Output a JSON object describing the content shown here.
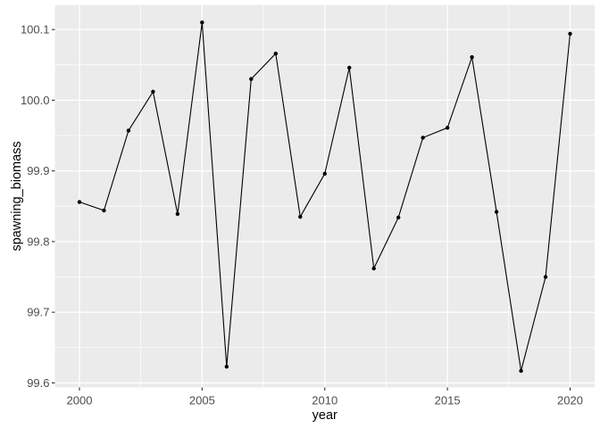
{
  "figure": {
    "background_color": "#FFFFFF"
  },
  "chart_data": {
    "type": "line",
    "title": "",
    "xlabel": "year",
    "ylabel": "spawning_biomass",
    "x": [
      2000,
      2001,
      2002,
      2003,
      2004,
      2005,
      2006,
      2007,
      2008,
      2009,
      2010,
      2011,
      2012,
      2013,
      2014,
      2015,
      2016,
      2017,
      2018,
      2019,
      2020
    ],
    "series": [
      {
        "name": "spawning_biomass",
        "values": [
          99.856,
          99.844,
          99.957,
          100.012,
          99.839,
          100.11,
          99.623,
          100.03,
          100.066,
          99.835,
          99.896,
          100.046,
          99.762,
          99.834,
          99.947,
          99.961,
          100.061,
          99.842,
          99.617,
          99.75,
          100.094
        ]
      }
    ],
    "xlim": [
      1999,
      2021
    ],
    "ylim": [
      99.5936,
      100.1346
    ],
    "x_ticks": [
      {
        "value": 2000,
        "label": "2000"
      },
      {
        "value": 2005,
        "label": "2005"
      },
      {
        "value": 2010,
        "label": "2010"
      },
      {
        "value": 2015,
        "label": "2015"
      },
      {
        "value": 2020,
        "label": "2020"
      }
    ],
    "y_ticks": [
      {
        "value": 99.6,
        "label": "99.6"
      },
      {
        "value": 99.7,
        "label": "99.7"
      },
      {
        "value": 99.8,
        "label": "99.8"
      },
      {
        "value": 99.9,
        "label": "99.9"
      },
      {
        "value": 100.0,
        "label": "100.0"
      },
      {
        "value": 100.1,
        "label": "100.1"
      }
    ],
    "x_minor_ticks": [
      2002.5,
      2007.5,
      2012.5,
      2017.5
    ],
    "y_minor_ticks": [
      99.65,
      99.75,
      99.85,
      99.95,
      100.05
    ],
    "grid": true,
    "legend_position": "none",
    "marker": "filled-circle",
    "colors": {
      "panel_bg": "#EBEBEB",
      "grid_major": "#FFFFFF",
      "grid_minor": "#FFFFFF",
      "line": "#000000",
      "point": "#000000",
      "tick_label": "#4D4D4D",
      "axis_title": "#000000",
      "tick_mark": "#333333"
    }
  }
}
